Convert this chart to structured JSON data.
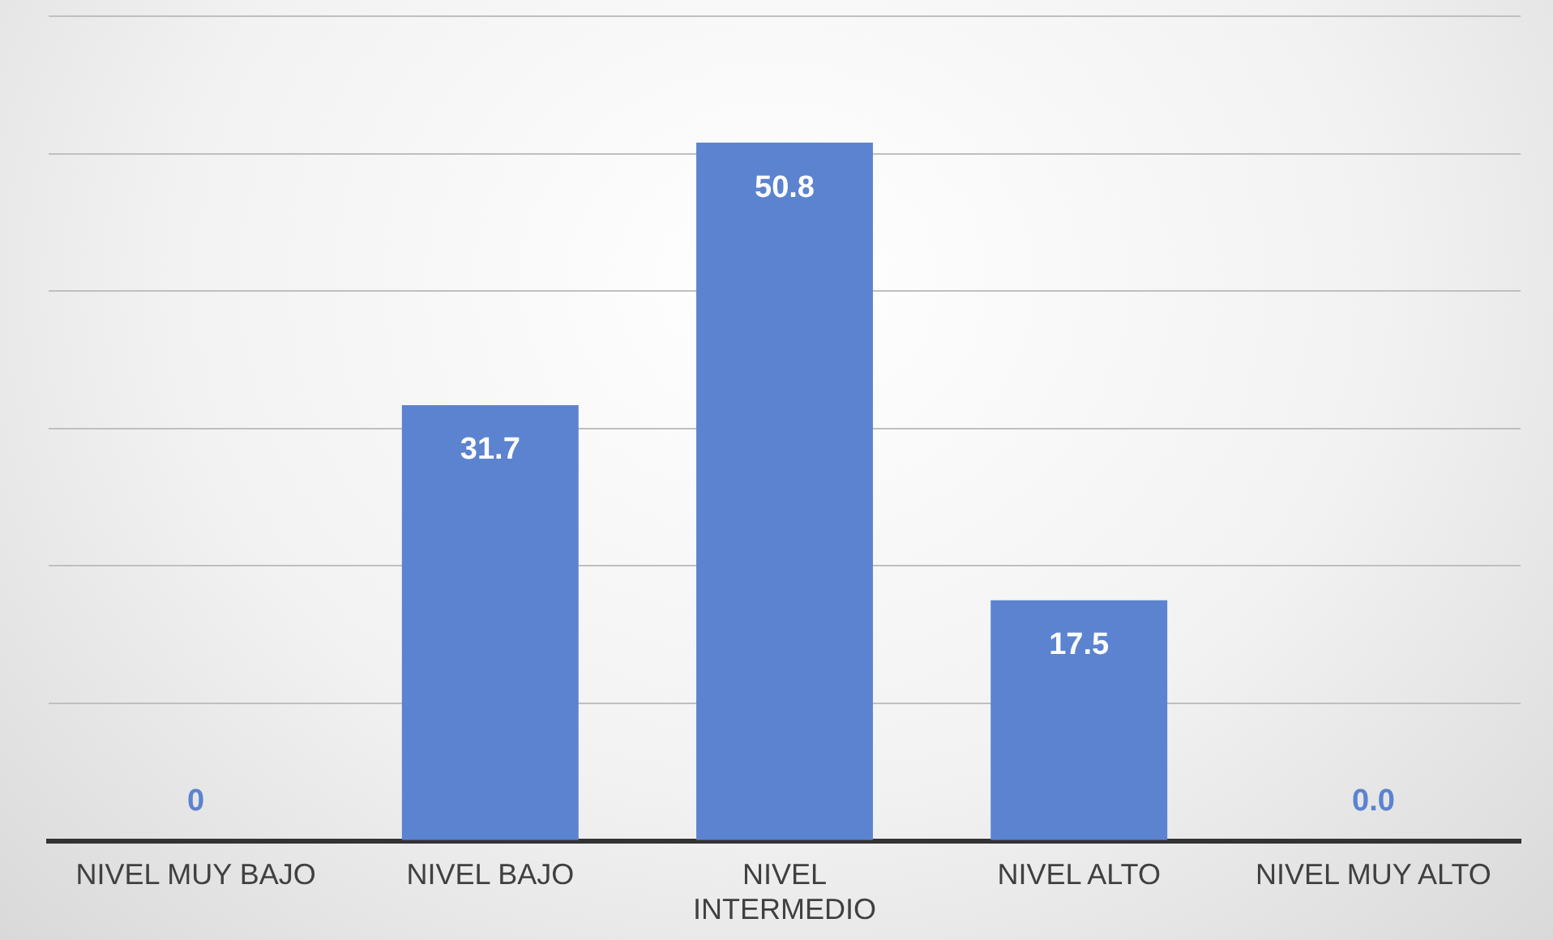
{
  "chart_data": {
    "type": "bar",
    "categories": [
      "NIVEL MUY BAJO",
      "NIVEL BAJO",
      "NIVEL INTERMEDIO",
      "NIVEL ALTO",
      "NIVEL MUY ALTO"
    ],
    "values": [
      0,
      31.7,
      50.8,
      17.5,
      0
    ],
    "value_labels": [
      "0",
      "31.7",
      "50.8",
      "17.5",
      "0.0"
    ],
    "color": "#5b83cf",
    "ylim": [
      0,
      60
    ],
    "yticks": [
      {
        "value": 0,
        "label": null
      },
      {
        "value": 10,
        "label": null
      },
      {
        "value": 20,
        "label": null
      },
      {
        "value": 30,
        "label": null
      },
      {
        "value": 40,
        "label": null
      },
      {
        "value": 50,
        "label": null
      },
      {
        "value": 60,
        "label": null
      }
    ],
    "grid": "y",
    "tick_labels": "x",
    "legend": false
  }
}
